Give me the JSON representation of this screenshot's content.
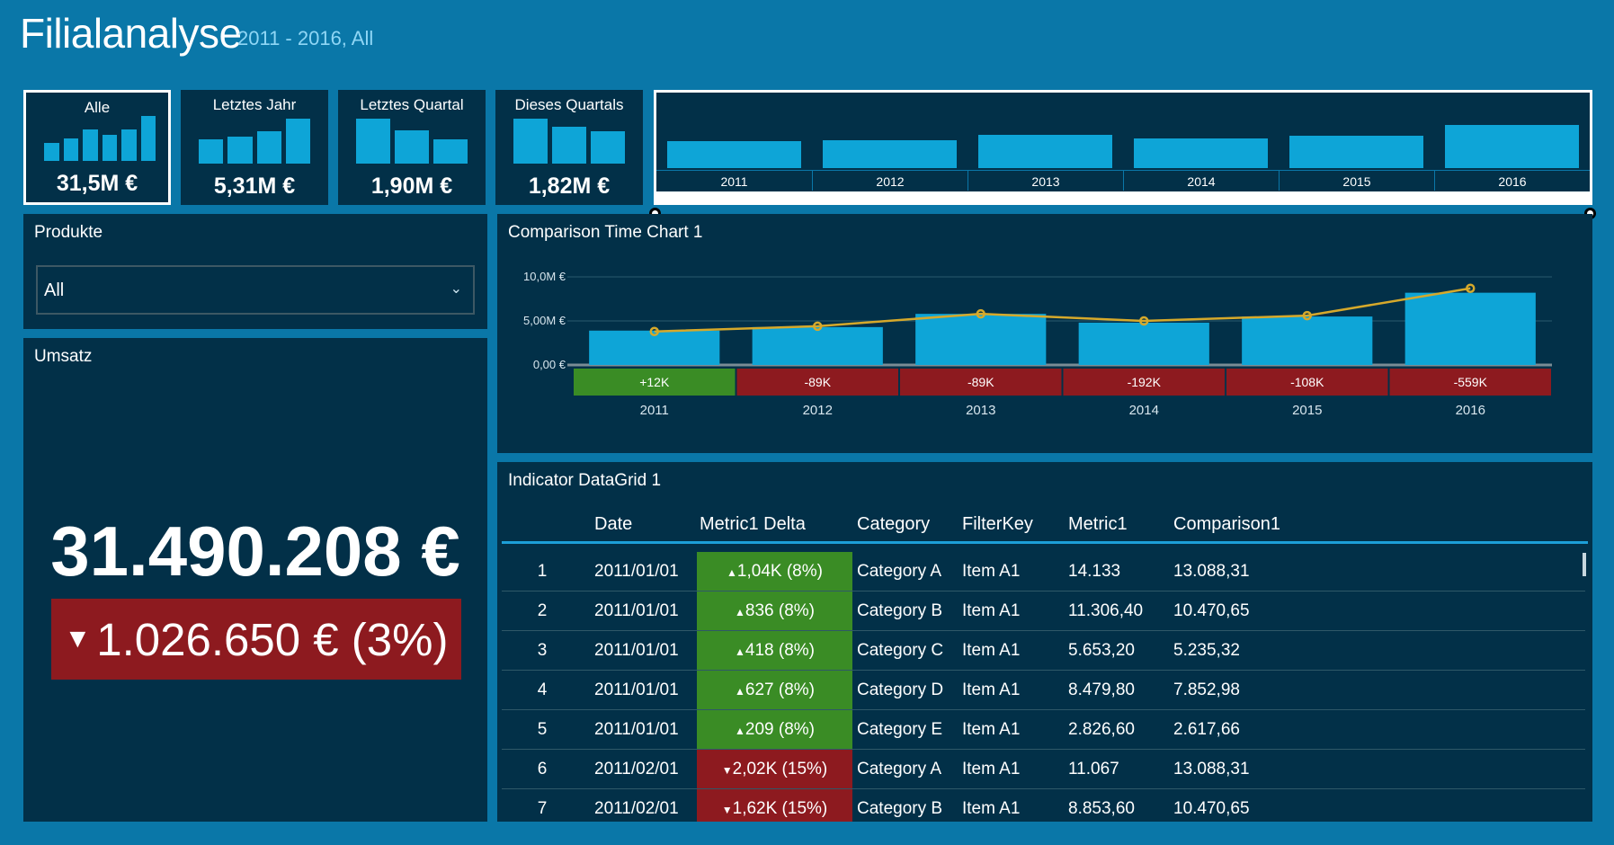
{
  "header": {
    "title": "Filialanalyse",
    "subtitle": "2011 - 2016, All"
  },
  "colors": {
    "background": "#0a77a8",
    "panel": "#023048",
    "bar": "#0ea5d7",
    "line": "#d6a92b",
    "positive": "#3a8c25",
    "negative": "#8d1a1f"
  },
  "tiles": [
    {
      "label": "Alle",
      "value": "31,5M €",
      "selected": true,
      "bars": [
        0.4,
        0.5,
        0.7,
        0.58,
        0.7,
        1.0
      ]
    },
    {
      "label": "Letztes Jahr",
      "value": "5,31M €",
      "selected": false,
      "bars": [
        0.55,
        0.6,
        0.72,
        1.0
      ]
    },
    {
      "label": "Letztes Quartal",
      "value": "1,90M €",
      "selected": false,
      "bars": [
        1.0,
        0.75,
        0.55
      ]
    },
    {
      "label": "Dieses Quartals",
      "value": "1,82M €",
      "selected": false,
      "bars": [
        1.0,
        0.82,
        0.72
      ]
    }
  ],
  "range_selector": {
    "years": [
      "2011",
      "2012",
      "2013",
      "2014",
      "2015",
      "2016"
    ],
    "bars": [
      0.48,
      0.5,
      0.68,
      0.56,
      0.64,
      1.0
    ],
    "selected_from": "2011",
    "selected_to": "2016"
  },
  "products": {
    "title": "Produkte",
    "selected": "All",
    "chevron_icon": "chevron-down-icon"
  },
  "revenue": {
    "title": "Umsatz",
    "value": "31.490.208 €",
    "delta": "1.026.650 € (3%)",
    "delta_icon": "triangle-down-icon",
    "delta_direction": "down"
  },
  "comparison_chart": {
    "title": "Comparison Time Chart 1",
    "chart_data": {
      "type": "bar",
      "categories": [
        "2011",
        "2012",
        "2013",
        "2014",
        "2015",
        "2016"
      ],
      "series": [
        {
          "values": [
            3.9,
            4.3,
            5.8,
            4.8,
            5.5,
            8.2
          ]
        },
        {
          "values": [
            3.8,
            4.4,
            5.8,
            5.0,
            5.6,
            8.7
          ]
        }
      ],
      "deltas": [
        "+12K",
        "-89K",
        "-89K",
        "-192K",
        "-108K",
        "-559K"
      ],
      "delta_positive": [
        true,
        false,
        false,
        false,
        false,
        false
      ],
      "yticks": [
        "0,00 €",
        "5,00M €",
        "10,0M €"
      ],
      "ylim": [
        0,
        10
      ],
      "grid": true
    }
  },
  "datagrid": {
    "title": "Indicator DataGrid 1",
    "columns": [
      "Date",
      "Metric1 Delta",
      "Category",
      "FilterKey",
      "Metric1",
      "Comparison1"
    ],
    "rows": [
      {
        "n": "1",
        "date": "2011/01/01",
        "delta": "1,04K (8%)",
        "up": true,
        "category": "Category A",
        "filter": "Item A1",
        "metric": "14.133",
        "comparison": "13.088,31"
      },
      {
        "n": "2",
        "date": "2011/01/01",
        "delta": "836 (8%)",
        "up": true,
        "category": "Category B",
        "filter": "Item A1",
        "metric": "11.306,40",
        "comparison": "10.470,65"
      },
      {
        "n": "3",
        "date": "2011/01/01",
        "delta": "418 (8%)",
        "up": true,
        "category": "Category C",
        "filter": "Item A1",
        "metric": "5.653,20",
        "comparison": "5.235,32"
      },
      {
        "n": "4",
        "date": "2011/01/01",
        "delta": "627 (8%)",
        "up": true,
        "category": "Category D",
        "filter": "Item A1",
        "metric": "8.479,80",
        "comparison": "7.852,98"
      },
      {
        "n": "5",
        "date": "2011/01/01",
        "delta": "209 (8%)",
        "up": true,
        "category": "Category E",
        "filter": "Item A1",
        "metric": "2.826,60",
        "comparison": "2.617,66"
      },
      {
        "n": "6",
        "date": "2011/02/01",
        "delta": "2,02K (15%)",
        "up": false,
        "category": "Category A",
        "filter": "Item A1",
        "metric": "11.067",
        "comparison": "13.088,31"
      },
      {
        "n": "7",
        "date": "2011/02/01",
        "delta": "1,62K (15%)",
        "up": false,
        "category": "Category B",
        "filter": "Item A1",
        "metric": "8.853,60",
        "comparison": "10.470,65"
      }
    ]
  }
}
